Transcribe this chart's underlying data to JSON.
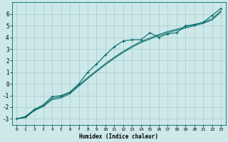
{
  "title": "",
  "xlabel": "Humidex (Indice chaleur)",
  "ylabel": "",
  "background_color": "#cce8e8",
  "grid_color": "#aacccc",
  "line_color": "#006666",
  "x_ticks": [
    0,
    1,
    2,
    3,
    4,
    5,
    6,
    7,
    8,
    9,
    10,
    11,
    12,
    13,
    14,
    15,
    16,
    17,
    18,
    19,
    20,
    21,
    22,
    23
  ],
  "ylim": [
    -3.5,
    7.0
  ],
  "xlim": [
    -0.5,
    23.5
  ],
  "yticks": [
    -3,
    -2,
    -1,
    0,
    1,
    2,
    3,
    4,
    5,
    6
  ],
  "line1_x": [
    0,
    1,
    2,
    3,
    4,
    5,
    6,
    7,
    8,
    9,
    10,
    11,
    12,
    13,
    14,
    15,
    16,
    17,
    18,
    19,
    20,
    21,
    22,
    23
  ],
  "line1_y": [
    -3.0,
    -2.8,
    -2.2,
    -1.8,
    -1.1,
    -1.0,
    -0.7,
    0.0,
    1.0,
    1.7,
    2.5,
    3.2,
    3.7,
    3.8,
    3.8,
    4.4,
    4.0,
    4.3,
    4.4,
    5.0,
    5.1,
    5.3,
    5.9,
    6.5
  ],
  "line2_x": [
    0,
    1,
    2,
    3,
    4,
    5,
    6,
    7,
    8,
    9,
    10,
    11,
    12,
    13,
    14,
    15,
    16,
    17,
    18,
    19,
    20,
    21,
    22,
    23
  ],
  "line2_y": [
    -3.0,
    -2.85,
    -2.25,
    -1.85,
    -1.25,
    -1.1,
    -0.75,
    -0.1,
    0.55,
    1.15,
    1.75,
    2.3,
    2.8,
    3.25,
    3.65,
    3.95,
    4.25,
    4.5,
    4.7,
    4.9,
    5.1,
    5.3,
    5.6,
    6.3
  ],
  "line3_x": [
    0,
    1,
    2,
    3,
    4,
    5,
    6,
    7,
    8,
    9,
    10,
    11,
    12,
    13,
    14,
    15,
    16,
    17,
    18,
    19,
    20,
    21,
    22,
    23
  ],
  "line3_y": [
    -3.0,
    -2.9,
    -2.3,
    -1.95,
    -1.35,
    -1.2,
    -0.85,
    -0.2,
    0.45,
    1.05,
    1.65,
    2.2,
    2.7,
    3.15,
    3.55,
    3.85,
    4.15,
    4.4,
    4.6,
    4.8,
    5.0,
    5.2,
    5.5,
    6.2
  ]
}
